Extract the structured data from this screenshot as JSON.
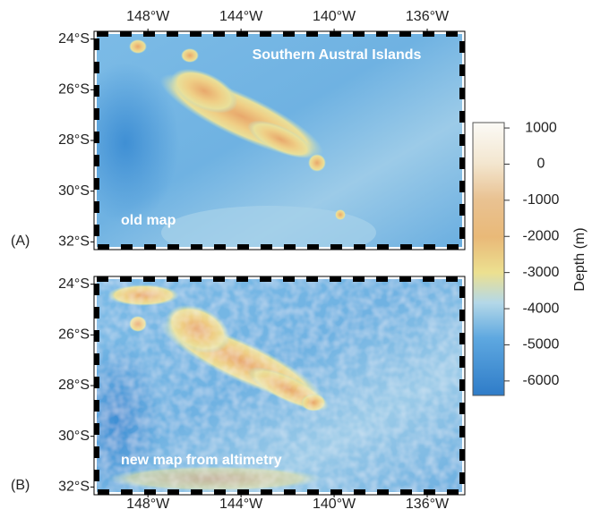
{
  "maps": [
    {
      "panel": "(A)",
      "title": "Southern Austral Islands",
      "caption": "old map"
    },
    {
      "panel": "(B)",
      "caption": "new map from altimetry"
    }
  ],
  "lon_axis": {
    "lim": [
      -150.2,
      -134.5
    ],
    "ticks": [
      {
        "value": -148,
        "label": "148°W"
      },
      {
        "value": -144,
        "label": "144°W"
      },
      {
        "value": -140,
        "label": "140°W"
      },
      {
        "value": -136,
        "label": "136°W"
      }
    ]
  },
  "lat_axis": {
    "lim": [
      -23.8,
      -32.2
    ],
    "ticks": [
      {
        "value": -24,
        "label": "24°S"
      },
      {
        "value": -26,
        "label": "26°S"
      },
      {
        "value": -28,
        "label": "28°S"
      },
      {
        "value": -30,
        "label": "30°S"
      },
      {
        "value": -32,
        "label": "32°S"
      }
    ]
  },
  "colorbar": {
    "label": "Depth (m)",
    "lim": [
      1150,
      -6400
    ],
    "ticks": [
      1000,
      0,
      -1000,
      -2000,
      -3000,
      -4000,
      -5000,
      -6000
    ]
  }
}
